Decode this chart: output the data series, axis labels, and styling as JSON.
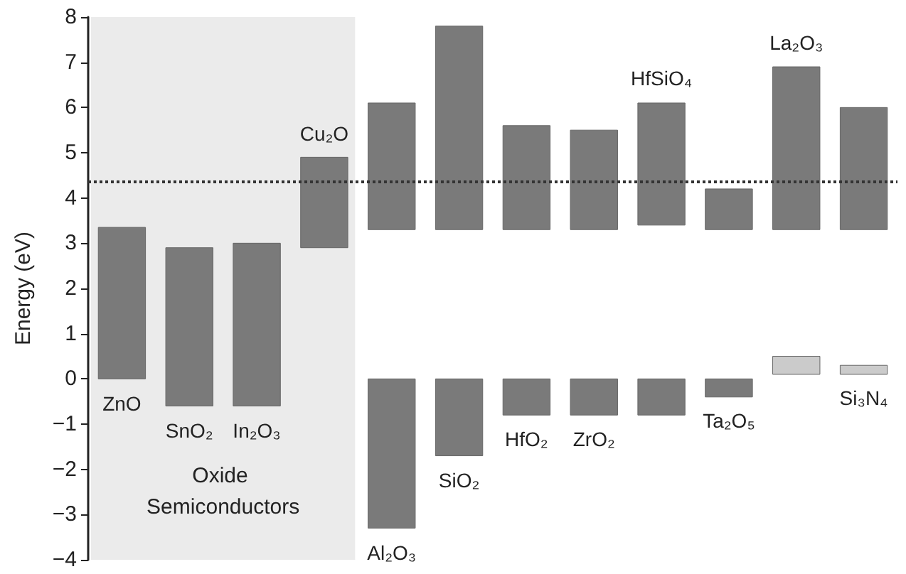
{
  "chart_data": {
    "type": "bar",
    "ylabel": "Energy (eV)",
    "categories": [
      "ZnO",
      "SnO₂",
      "In₂O₃",
      "Cu₂O",
      "Al₂O₃",
      "SiO₂",
      "HfO₂",
      "ZrO₂",
      "HfSiO₄",
      "Ta₂O₅",
      "La₂O₃",
      "Si₃N₄"
    ],
    "series": [
      {
        "color": "#7a7a7a",
        "base": [
          0,
          -0.6,
          -0.6,
          2.9,
          3.3,
          3.3,
          3.3,
          3.3,
          3.4,
          3.3,
          3.3,
          3.3
        ],
        "values": [
          3.35,
          3.5,
          3.6,
          2.0,
          2.8,
          4.5,
          2.3,
          2.2,
          2.7,
          0.9,
          3.6,
          2.7
        ]
      },
      {
        "color": "#7a7a7a",
        "base": [
          null,
          null,
          null,
          null,
          0,
          0,
          0,
          0,
          0,
          0,
          null,
          null
        ],
        "values": [
          null,
          null,
          null,
          null,
          -3.3,
          -1.7,
          -0.8,
          -0.8,
          -0.8,
          -0.4,
          null,
          null
        ]
      },
      {
        "color": "#cbcbcb",
        "base": [
          null,
          null,
          null,
          null,
          null,
          null,
          null,
          null,
          null,
          null,
          0.1,
          0.1
        ],
        "values": [
          null,
          null,
          null,
          null,
          null,
          null,
          null,
          null,
          null,
          null,
          0.4,
          0.2
        ]
      }
    ],
    "ylim": [
      -4,
      8
    ],
    "yticks": [
      -4,
      -3,
      -2,
      -1,
      0,
      1,
      2,
      3,
      4,
      5,
      6,
      7,
      8
    ],
    "grid": false,
    "ref_lines": [
      {
        "axis": "y",
        "value": 4.35,
        "color": "#333333",
        "line_style": "dotted"
      }
    ],
    "bands": [
      {
        "axis": "x",
        "from": "ZnO",
        "to": "Cu₂O",
        "label": "Oxide Semiconductors",
        "color": "#ebebeb"
      }
    ]
  }
}
